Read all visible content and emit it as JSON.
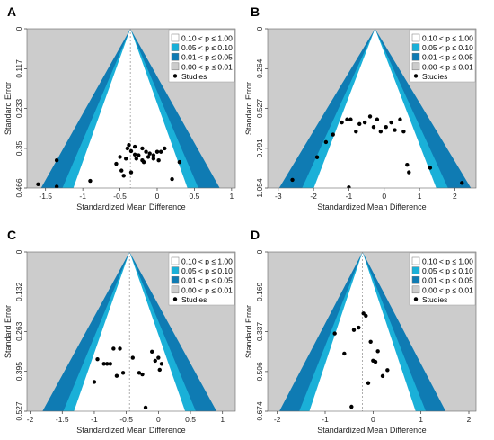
{
  "colors": {
    "background": "#cccccc",
    "p_0_10_1_00": "#ffffff",
    "p_0_05_0_10": "#1ab0d8",
    "p_0_01_0_05": "#0f7bb3",
    "p_0_00_0_01": "#cccccc",
    "studies": "#000000",
    "reference_line": "#9a9a9a"
  },
  "legend": [
    {
      "label": "0.10 < p ≤ 1.00",
      "color": "#ffffff"
    },
    {
      "label": "0.05 < p ≤ 0.10",
      "color": "#1ab0d8"
    },
    {
      "label": "0.01 < p ≤ 0.05",
      "color": "#0f7bb3"
    },
    {
      "label": "0.00 < p ≤ 0.01",
      "color": "#cccccc"
    },
    {
      "label": "Studies",
      "marker": "dot"
    }
  ],
  "chart_data": [
    {
      "panel": "A",
      "type": "scatter",
      "xlabel": "Standardized Mean Difference",
      "ylabel": "Standard Error",
      "xlim": [
        -1.75,
        1.05
      ],
      "ylim": [
        0.466,
        0
      ],
      "xticks": [
        -1.5,
        -1,
        -0.5,
        0,
        0.5,
        1
      ],
      "xticklabels": [
        "-1.5",
        "-1",
        "-0.5",
        "0",
        "0.5",
        "1"
      ],
      "yticks": [
        0,
        0.117,
        0.233,
        0.35,
        0.466
      ],
      "yticklabels": [
        "0",
        "0.117",
        "0.233",
        "0.35",
        "0.466"
      ],
      "funnel_center": -0.36,
      "x": [
        -1.6,
        -1.35,
        -1.35,
        -0.9,
        -0.55,
        -0.5,
        -0.48,
        -0.42,
        -0.38,
        -0.35,
        -0.3,
        -0.25,
        -0.2,
        -0.15,
        -0.1,
        -0.05,
        0.0,
        0.05,
        -0.45,
        -0.35,
        -0.28,
        -0.2,
        -0.12,
        -0.05,
        0.02,
        0.1,
        -0.4,
        -0.3,
        -0.18,
        0.3,
        0.2
      ],
      "y": [
        0.455,
        0.462,
        0.385,
        0.445,
        0.395,
        0.375,
        0.415,
        0.38,
        0.34,
        0.358,
        0.368,
        0.37,
        0.35,
        0.36,
        0.365,
        0.37,
        0.36,
        0.36,
        0.43,
        0.42,
        0.38,
        0.385,
        0.375,
        0.38,
        0.385,
        0.35,
        0.35,
        0.345,
        0.39,
        0.39,
        0.44
      ]
    },
    {
      "panel": "B",
      "type": "scatter",
      "xlabel": "Standardized Mean Difference",
      "ylabel": "Standard Error",
      "xlim": [
        -3.3,
        2.6
      ],
      "ylim": [
        1.054,
        0
      ],
      "xticks": [
        -3,
        -2,
        -1,
        0,
        1,
        2
      ],
      "xticklabels": [
        "-3",
        "-2",
        "-1",
        "0",
        "1",
        "2"
      ],
      "yticks": [
        0,
        0.264,
        0.527,
        0.791,
        1.054
      ],
      "yticklabels": [
        "0",
        "0.264",
        "0.527",
        "0.791",
        "1.054"
      ],
      "funnel_center": -0.26,
      "x": [
        -2.6,
        -1.9,
        -1.65,
        -1.45,
        -1.2,
        -1.05,
        -0.95,
        -0.7,
        -0.55,
        -0.4,
        -0.3,
        -0.2,
        -0.1,
        0.05,
        0.2,
        0.3,
        0.45,
        0.55,
        0.65,
        0.7,
        -0.8,
        1.3,
        2.2,
        -1.0
      ],
      "y": [
        1.0,
        0.85,
        0.75,
        0.7,
        0.62,
        0.6,
        0.6,
        0.63,
        0.62,
        0.58,
        0.65,
        0.6,
        0.68,
        0.65,
        0.62,
        0.67,
        0.6,
        0.68,
        0.9,
        0.95,
        0.68,
        0.92,
        1.02,
        1.05
      ]
    },
    {
      "panel": "C",
      "type": "scatter",
      "xlabel": "Standardized Mean Difference",
      "ylabel": "Standard Error",
      "xlim": [
        -2.05,
        1.2
      ],
      "ylim": [
        0.527,
        0
      ],
      "xticks": [
        -2,
        -1.5,
        -1,
        -0.5,
        0,
        0.5,
        1
      ],
      "xticklabels": [
        "-2",
        "-1.5",
        "-1",
        "-0.5",
        "0",
        "0.5",
        "1"
      ],
      "yticks": [
        0,
        0.132,
        0.263,
        0.395,
        0.527
      ],
      "yticklabels": [
        "0",
        "0.132",
        "0.263",
        "0.395",
        "0.527"
      ],
      "funnel_center": -0.45,
      "x": [
        -1.0,
        -0.95,
        -0.85,
        -0.8,
        -0.75,
        -0.7,
        -0.6,
        -0.55,
        -0.4,
        -0.3,
        -0.1,
        -0.05,
        0.0,
        0.05,
        -0.65,
        -0.25,
        0.02,
        -0.2
      ],
      "y": [
        0.43,
        0.355,
        0.37,
        0.37,
        0.37,
        0.32,
        0.32,
        0.4,
        0.35,
        0.4,
        0.33,
        0.36,
        0.35,
        0.37,
        0.41,
        0.405,
        0.39,
        0.515
      ]
    },
    {
      "panel": "D",
      "type": "scatter",
      "xlabel": "Standardized Mean Difference",
      "ylabel": "Standard Error",
      "xlim": [
        -2.2,
        2.15
      ],
      "ylim": [
        0.674,
        0
      ],
      "xticks": [
        -2,
        -1,
        0,
        1,
        2
      ],
      "xticklabels": [
        "-2",
        "-1",
        "0",
        "1",
        "2"
      ],
      "yticks": [
        0,
        0.169,
        0.337,
        0.506,
        0.674
      ],
      "yticklabels": [
        "0",
        "0.169",
        "0.337",
        "0.506",
        "0.674"
      ],
      "funnel_center": -0.22,
      "x": [
        -0.8,
        -0.6,
        -0.4,
        -0.3,
        -0.2,
        -0.15,
        -0.05,
        0.0,
        0.05,
        0.1,
        0.2,
        0.3,
        -0.1,
        -0.45
      ],
      "y": [
        0.345,
        0.43,
        0.33,
        0.32,
        0.26,
        0.27,
        0.38,
        0.46,
        0.465,
        0.42,
        0.525,
        0.5,
        0.555,
        0.655
      ]
    }
  ]
}
